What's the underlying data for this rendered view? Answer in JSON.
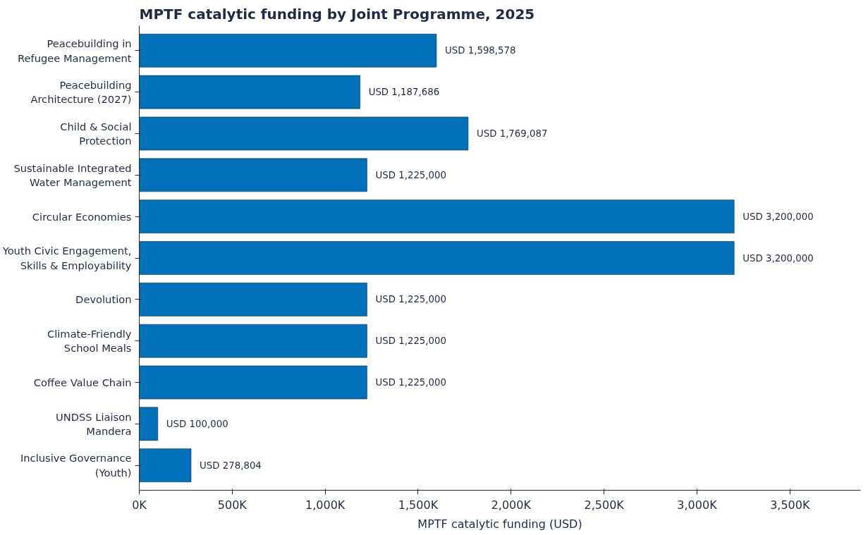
{
  "chart_data": {
    "type": "bar",
    "orientation": "horizontal",
    "title": "MPTF catalytic funding by Joint Programme, 2025",
    "xlabel": "MPTF catalytic funding (USD)",
    "categories": [
      "Peacebuilding in\nRefugee Management",
      "Peacebuilding\nArchitecture (2027)",
      "Child & Social\nProtection",
      "Sustainable Integrated\nWater Management",
      "Circular Economies",
      "Youth Civic Engagement,\nSkills & Employability",
      "Devolution",
      "Climate-Friendly\nSchool Meals",
      "Coffee Value Chain",
      "UNDSS Liaison\nMandera",
      "Inclusive Governance\n(Youth)"
    ],
    "values": [
      1598578,
      1187686,
      1769087,
      1225000,
      3200000,
      3200000,
      1225000,
      1225000,
      1225000,
      100000,
      278804
    ],
    "value_labels": [
      "USD 1,598,578",
      "USD 1,187,686",
      "USD 1,769,087",
      "USD 1,225,000",
      "USD 3,200,000",
      "USD 3,200,000",
      "USD 1,225,000",
      "USD 1,225,000",
      "USD 1,225,000",
      "USD 100,000",
      "USD 278,804"
    ],
    "color": "#0070b8",
    "xlim": [
      0,
      3880000
    ],
    "xticks": [
      {
        "value": 0,
        "label": "0K"
      },
      {
        "value": 500000,
        "label": "500K"
      },
      {
        "value": 1000000,
        "label": "1,000K"
      },
      {
        "value": 1500000,
        "label": "1,500K"
      },
      {
        "value": 2000000,
        "label": "2,000K"
      },
      {
        "value": 2500000,
        "label": "2,500K"
      },
      {
        "value": 3000000,
        "label": "3,000K"
      },
      {
        "value": 3500000,
        "label": "3,500K"
      }
    ],
    "grid": false
  }
}
